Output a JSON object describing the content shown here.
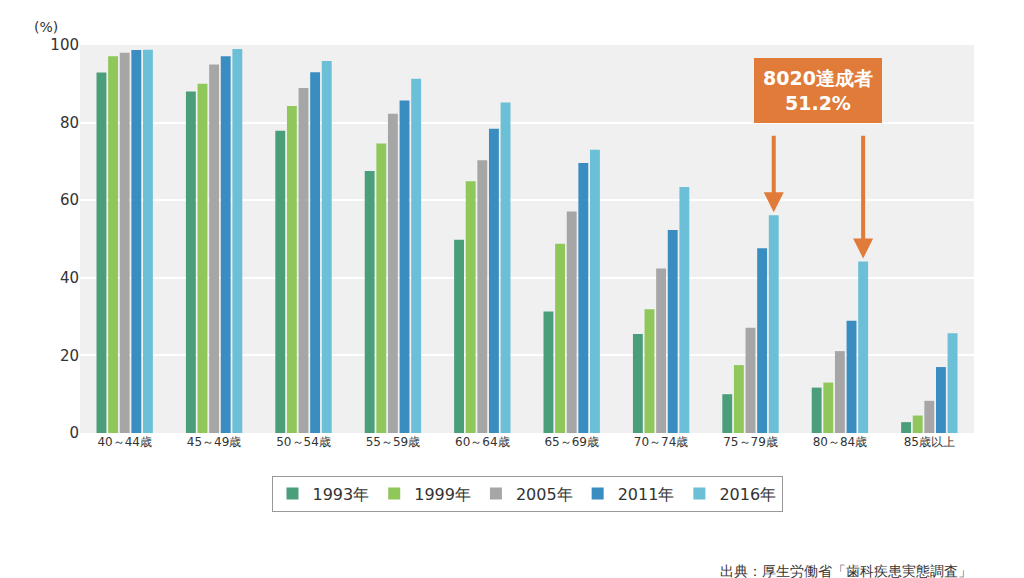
{
  "chart_data": {
    "type": "bar",
    "ylabel": "(%)",
    "categories": [
      "40～44歳",
      "45～49歳",
      "50～54歳",
      "55～59歳",
      "60～64歳",
      "65～69歳",
      "70～74歳",
      "75～79歳",
      "80～84歳",
      "85歳以上"
    ],
    "series": [
      {
        "name": "1993年",
        "color": "#4a9e7a",
        "values": [
          92.9,
          88.0,
          77.9,
          67.5,
          49.8,
          31.3,
          25.5,
          10.0,
          11.7,
          2.8
        ]
      },
      {
        "name": "1999年",
        "color": "#8fc75a",
        "values": [
          97.1,
          90.0,
          84.3,
          74.6,
          64.9,
          48.8,
          31.9,
          17.5,
          13.0,
          4.5
        ]
      },
      {
        "name": "2005年",
        "color": "#a6a6a6",
        "values": [
          98.0,
          95.0,
          88.9,
          82.3,
          70.3,
          57.1,
          42.4,
          27.1,
          21.1,
          8.3
        ]
      },
      {
        "name": "2011年",
        "color": "#3a8dc0",
        "values": [
          98.7,
          97.1,
          93.0,
          85.7,
          78.4,
          69.6,
          52.3,
          47.6,
          28.9,
          17.0
        ]
      },
      {
        "name": "2016年",
        "color": "#6bbfd6",
        "values": [
          98.8,
          99.0,
          95.9,
          91.3,
          85.2,
          73.0,
          63.4,
          56.1,
          44.2,
          25.7
        ]
      }
    ],
    "ylim": [
      0,
      100
    ],
    "yticks": [
      0,
      20,
      40,
      60,
      80,
      100
    ],
    "grid": true,
    "legend": "bottom",
    "annotations": [
      {
        "text": [
          "8020達成者",
          "51.2%"
        ],
        "color": "#e07b39",
        "series": "2016年",
        "targets": [
          "75～79歳",
          "80～84歳"
        ]
      }
    ],
    "source": "出典：厚生労働省「歯科疾患実態調査」"
  }
}
